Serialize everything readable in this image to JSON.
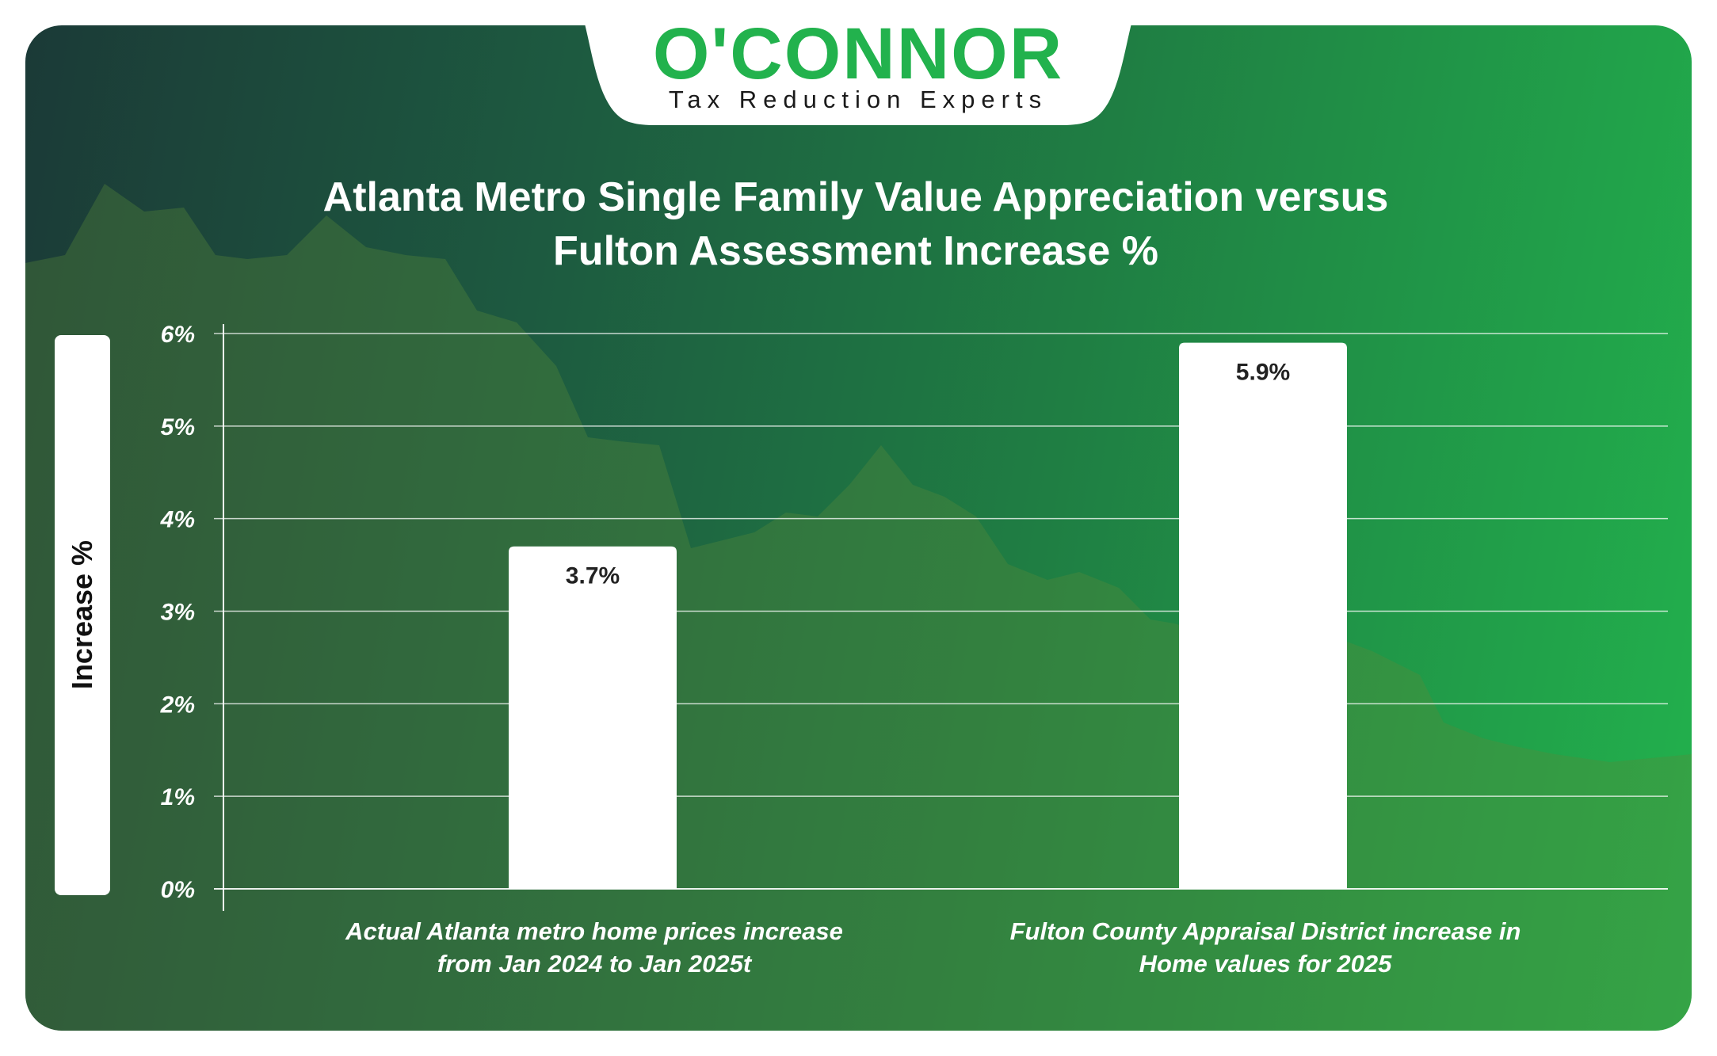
{
  "brand": {
    "name": "O'CONNOR",
    "tagline": "Tax Reduction Experts",
    "accent_color": "#22b24d"
  },
  "chart_data": {
    "type": "bar",
    "title": "Atlanta Metro Single Family Value Appreciation versus Fulton Assessment Increase %",
    "title_lines": [
      "Atlanta Metro Single Family Value Appreciation versus",
      "Fulton Assessment Increase %"
    ],
    "ylabel": "Increase %",
    "xlabel": "",
    "categories": [
      "Actual Atlanta metro home prices increase from Jan 2024 to Jan 2025t",
      "Fulton County Appraisal District increase in Home values for 2025"
    ],
    "category_lines": [
      [
        "Actual Atlanta metro home prices increase",
        "from Jan 2024 to Jan 2025t"
      ],
      [
        "Fulton County Appraisal District increase in",
        "Home values for 2025"
      ]
    ],
    "values": [
      3.7,
      5.9
    ],
    "data_labels": [
      "3.7%",
      "5.9%"
    ],
    "ylim": [
      0,
      6
    ],
    "yticks": [
      0,
      1,
      2,
      3,
      4,
      5,
      6
    ],
    "ytick_labels": [
      "0%",
      "1%",
      "2%",
      "3%",
      "4%",
      "5%",
      "6%"
    ],
    "grid": true,
    "bar_color": "#ffffff"
  }
}
